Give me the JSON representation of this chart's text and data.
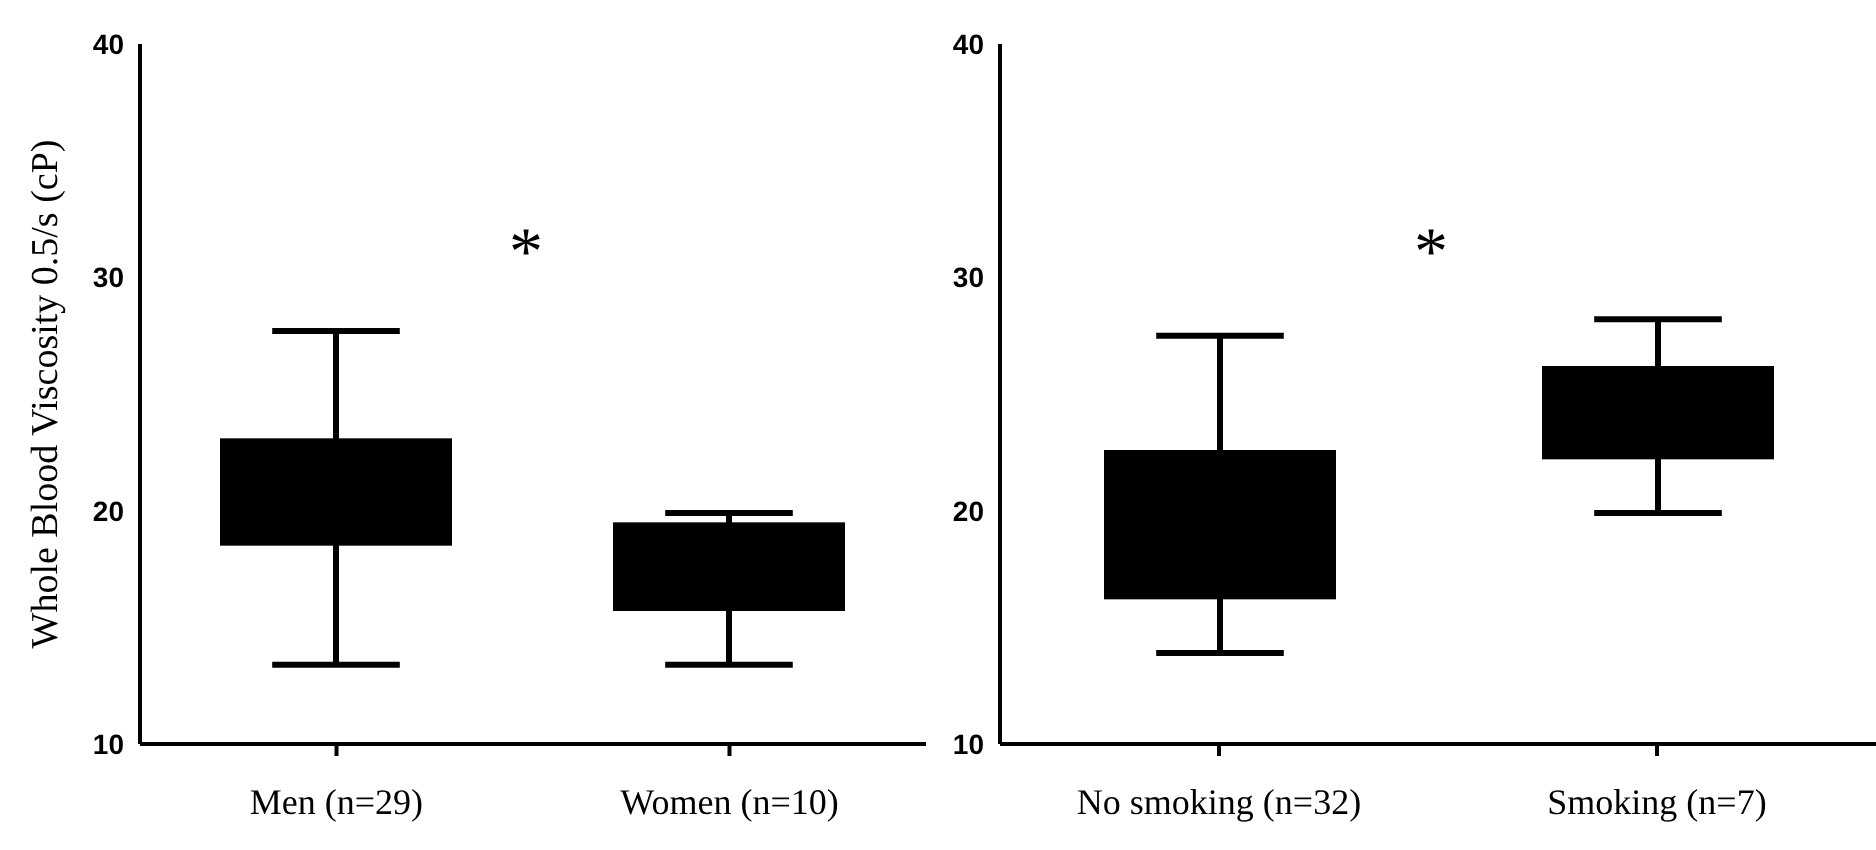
{
  "chart_data": [
    {
      "type": "box",
      "ylabel": "Whole Blood Viscosity 0.5/s (cP)",
      "categories": [
        "Men (n=29)",
        "Women (n=10)"
      ],
      "color": "#000000",
      "boxes": [
        {
          "low": 13.4,
          "q1": 18.5,
          "median": null,
          "q3": 23.1,
          "high": 27.7
        },
        {
          "low": 13.4,
          "q1": 15.7,
          "median": null,
          "q3": 19.5,
          "high": 19.9
        }
      ],
      "ylim": [
        10,
        40
      ],
      "yticks": [
        10,
        20,
        30,
        40
      ],
      "annotations": [
        "*"
      ]
    },
    {
      "type": "box",
      "categories": [
        "No smoking (n=32)",
        "Smoking (n=7)"
      ],
      "color": "#000000",
      "boxes": [
        {
          "low": 13.9,
          "q1": 16.2,
          "median": null,
          "q3": 22.6,
          "high": 27.5
        },
        {
          "low": 19.9,
          "q1": 22.2,
          "median": null,
          "q3": 26.2,
          "high": 28.2
        }
      ],
      "ylim": [
        10,
        40
      ],
      "yticks": [
        10,
        20,
        30,
        40
      ],
      "annotations": [
        "*"
      ]
    }
  ]
}
